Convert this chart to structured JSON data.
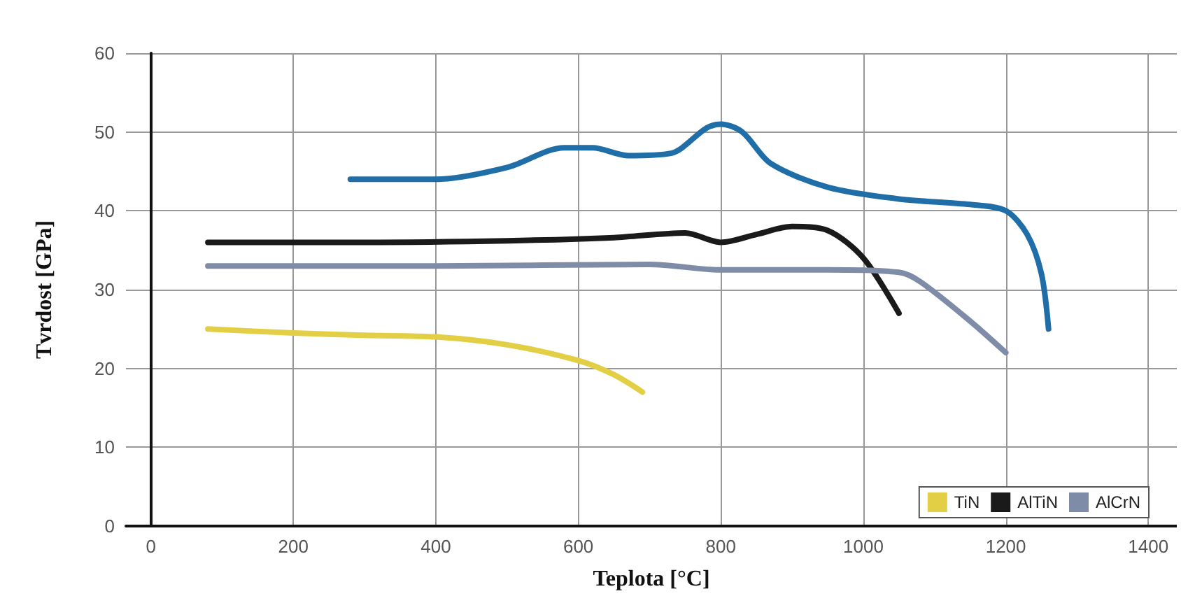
{
  "chart_data": {
    "type": "line",
    "xlabel": "Teplota [°C]",
    "ylabel": "Tvrdost [GPa]",
    "xlim": [
      -35,
      1440
    ],
    "xticks": [
      0,
      200,
      400,
      600,
      800,
      1000,
      1200,
      1400
    ],
    "ylim": [
      0,
      60
    ],
    "yticks": [
      0,
      10,
      20,
      30,
      40,
      50,
      60
    ],
    "grid": true,
    "legend": "bottom right",
    "marker": "none",
    "line_style": "solid",
    "series": [
      {
        "name": "TiN",
        "color": "#e3cf45",
        "x": [
          80,
          200,
          300,
          400,
          500,
          600,
          650,
          690
        ],
        "values": [
          25,
          24.5,
          24.2,
          24,
          23,
          21,
          19.2,
          17
        ]
      },
      {
        "name": "AlTiN",
        "color": "#1a1a1a",
        "x": [
          80,
          300,
          500,
          650,
          750,
          800,
          850,
          900,
          950,
          1000,
          1050
        ],
        "values": [
          36,
          36,
          36.2,
          36.6,
          37.2,
          36,
          37,
          38,
          37.5,
          34,
          27
        ]
      },
      {
        "name": "AlCrN",
        "color": "#7f8ca8",
        "x": [
          80,
          400,
          700,
          800,
          950,
          1050,
          1080,
          1150,
          1200
        ],
        "values": [
          33,
          33,
          33.2,
          32.5,
          32.5,
          32.2,
          31,
          26,
          22
        ]
      },
      {
        "color": "#1f6ea8",
        "x": [
          280,
          400,
          500,
          580,
          620,
          670,
          730,
          780,
          800,
          830,
          870,
          950,
          1050,
          1150,
          1200,
          1230,
          1250,
          1260
        ],
        "values": [
          44,
          44,
          45.5,
          48,
          48,
          47,
          47.3,
          50.5,
          51,
          50,
          46,
          43,
          41.5,
          40.8,
          40,
          37,
          32,
          25
        ]
      }
    ]
  }
}
